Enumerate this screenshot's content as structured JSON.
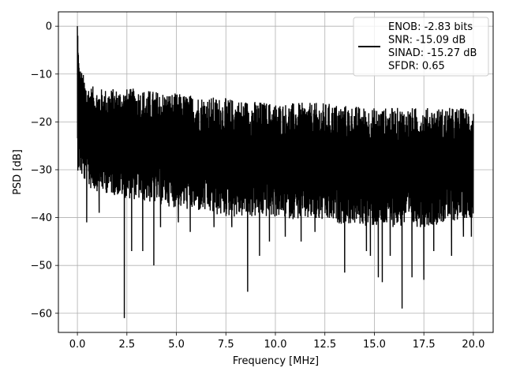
{
  "chart_data": {
    "type": "line",
    "title": "",
    "xlabel": "Frequency [MHz]",
    "ylabel": "PSD [dB]",
    "xlim": [
      -0.96,
      21.0
    ],
    "ylim": [
      -64.0,
      3.0
    ],
    "x_ticks": [
      0.0,
      2.5,
      5.0,
      7.5,
      10.0,
      12.5,
      15.0,
      17.5,
      20.0
    ],
    "x_tick_labels": [
      "0.0",
      "2.5",
      "5.0",
      "7.5",
      "10.0",
      "12.5",
      "15.0",
      "17.5",
      "20.0"
    ],
    "y_ticks": [
      0,
      -10,
      -20,
      -30,
      -40,
      -50,
      -60
    ],
    "y_tick_labels": [
      "0",
      "−10",
      "−20",
      "−30",
      "−40",
      "−50",
      "−60"
    ],
    "grid": true,
    "legend": {
      "placement": "top-right",
      "entries": [
        "ENOB: -2.83 bits",
        "SNR: -15.09 dB",
        "SINAD: -15.27 dB",
        "SFDR: 0.65"
      ]
    },
    "series": [
      {
        "color": "#000000",
        "x_start": 0.0,
        "x_end": 20.0,
        "peak": {
          "x": 0.0,
          "y": 0.0
        },
        "envelope_top": [
          [
            0.0,
            0.0
          ],
          [
            0.1,
            -8
          ],
          [
            0.5,
            -12
          ],
          [
            1.0,
            -13
          ],
          [
            2.0,
            -13
          ],
          [
            3.0,
            -13
          ],
          [
            5.0,
            -14
          ],
          [
            7.5,
            -15
          ],
          [
            10.0,
            -16
          ],
          [
            12.5,
            -16
          ],
          [
            15.0,
            -17
          ],
          [
            17.5,
            -17
          ],
          [
            20.0,
            -17
          ]
        ],
        "envelope_bottom": [
          [
            0.0,
            -30
          ],
          [
            0.5,
            -34
          ],
          [
            2.5,
            -36
          ],
          [
            5.0,
            -38
          ],
          [
            7.5,
            -40
          ],
          [
            10.0,
            -40
          ],
          [
            12.5,
            -41
          ],
          [
            15.0,
            -42
          ],
          [
            17.5,
            -42
          ],
          [
            20.0,
            -40
          ]
        ],
        "dips": [
          [
            0.47,
            -41
          ],
          [
            1.1,
            -39
          ],
          [
            2.37,
            -61
          ],
          [
            2.74,
            -47
          ],
          [
            3.3,
            -47
          ],
          [
            3.86,
            -50
          ],
          [
            4.2,
            -42
          ],
          [
            5.1,
            -41
          ],
          [
            5.7,
            -43
          ],
          [
            6.9,
            -42
          ],
          [
            7.8,
            -42
          ],
          [
            8.6,
            -55.5
          ],
          [
            9.2,
            -48
          ],
          [
            9.7,
            -45
          ],
          [
            10.5,
            -44
          ],
          [
            11.3,
            -45
          ],
          [
            12.0,
            -43
          ],
          [
            13.5,
            -51.5
          ],
          [
            14.6,
            -47
          ],
          [
            14.8,
            -48
          ],
          [
            15.2,
            -52.5
          ],
          [
            15.4,
            -53.5
          ],
          [
            15.8,
            -48
          ],
          [
            16.4,
            -59
          ],
          [
            16.9,
            -52.5
          ],
          [
            17.5,
            -53
          ],
          [
            18.0,
            -47
          ],
          [
            18.9,
            -48
          ],
          [
            19.5,
            -44
          ],
          [
            19.9,
            -44
          ]
        ]
      }
    ]
  }
}
